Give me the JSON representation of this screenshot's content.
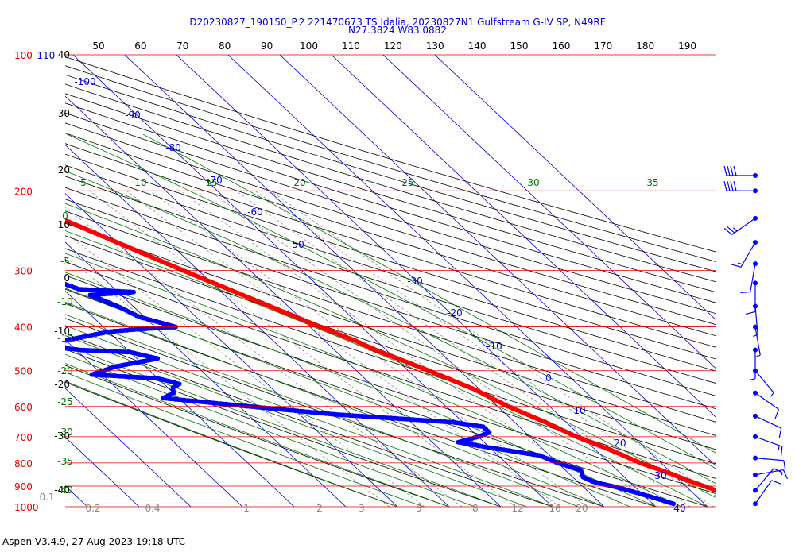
{
  "title_line1": "D20230827_190150_P.2 221470673 TS Idalia, 20230827N1 Gulfstream G-IV SP, N49RF",
  "title_line2": "N27.3824 W83.0882",
  "footer": "Aspen V3.4.9, 27 Aug 2023  19:18 UTC",
  "colors": {
    "pressure_line": "#dd0000",
    "isotherm": "#0000cc",
    "dry_adiabat": "#000000",
    "moist_adiabat": "#007700",
    "mixing_ratio": "#888888",
    "temperature": "#ff0000",
    "dewpoint": "#0000ff",
    "wind_barb": "#0000ff"
  },
  "chart_data": {
    "type": "skew-t",
    "pressure_labels": [
      "100",
      "200",
      "300",
      "400",
      "500",
      "600",
      "700",
      "800",
      "900",
      "1000"
    ],
    "height_label_100": "-110",
    "height_scale_labels": [
      "40",
      "30",
      "20",
      "10",
      "0",
      "-10",
      "-20",
      "-30",
      "-40"
    ],
    "top_scale_labels": [
      "50",
      "60",
      "70",
      "80",
      "90",
      "100",
      "110",
      "120",
      "130",
      "140",
      "150",
      "160",
      "170",
      "180",
      "190"
    ],
    "isotherm_labels": [
      "-100",
      "-90",
      "-80",
      "-70",
      "-60",
      "-50",
      "-30",
      "-20",
      "-10",
      "0",
      "10",
      "20",
      "30",
      "40"
    ],
    "moist_adiabat_labels_top": [
      "5",
      "10",
      "15",
      "20",
      "25",
      "30",
      "35"
    ],
    "moist_adiabat_labels_left": [
      "0",
      "-5",
      "-10",
      "-15",
      "-20",
      "-25",
      "-30",
      "-35",
      "-40"
    ],
    "mixing_ratio_labels": [
      "0.1",
      "0.2",
      "0.4",
      "1",
      "2",
      "3",
      "5",
      "8",
      "12",
      "16",
      "20"
    ],
    "temperature": [
      {
        "p": 185,
        "t": -55
      },
      {
        "p": 200,
        "t": -53
      },
      {
        "p": 230,
        "t": -46
      },
      {
        "p": 260,
        "t": -40
      },
      {
        "p": 300,
        "t": -33
      },
      {
        "p": 350,
        "t": -25
      },
      {
        "p": 400,
        "t": -18
      },
      {
        "p": 430,
        "t": -14
      },
      {
        "p": 450,
        "t": -12
      },
      {
        "p": 500,
        "t": -6
      },
      {
        "p": 550,
        "t": -1
      },
      {
        "p": 600,
        "t": 2
      },
      {
        "p": 650,
        "t": 6
      },
      {
        "p": 700,
        "t": 9
      },
      {
        "p": 750,
        "t": 13
      },
      {
        "p": 800,
        "t": 16
      },
      {
        "p": 850,
        "t": 20
      },
      {
        "p": 880,
        "t": 22
      },
      {
        "p": 920,
        "t": 25
      },
      {
        "p": 950,
        "t": 26
      },
      {
        "p": 985,
        "t": 28
      }
    ],
    "dewpoint": [
      {
        "p": 250,
        "t": -56
      },
      {
        "p": 265,
        "t": -54
      },
      {
        "p": 285,
        "t": -58
      },
      {
        "p": 310,
        "t": -61
      },
      {
        "p": 330,
        "t": -57
      },
      {
        "p": 335,
        "t": -47
      },
      {
        "p": 340,
        "t": -56
      },
      {
        "p": 360,
        "t": -53
      },
      {
        "p": 380,
        "t": -51
      },
      {
        "p": 400,
        "t": -46
      },
      {
        "p": 405,
        "t": -54
      },
      {
        "p": 410,
        "t": -60
      },
      {
        "p": 440,
        "t": -76
      },
      {
        "p": 450,
        "t": -69
      },
      {
        "p": 455,
        "t": -60
      },
      {
        "p": 470,
        "t": -56
      },
      {
        "p": 490,
        "t": -66
      },
      {
        "p": 510,
        "t": -72
      },
      {
        "p": 520,
        "t": -60
      },
      {
        "p": 535,
        "t": -57
      },
      {
        "p": 545,
        "t": -59
      },
      {
        "p": 560,
        "t": -60
      },
      {
        "p": 575,
        "t": -63
      },
      {
        "p": 600,
        "t": -48
      },
      {
        "p": 625,
        "t": -33
      },
      {
        "p": 650,
        "t": -12
      },
      {
        "p": 665,
        "t": -7
      },
      {
        "p": 685,
        "t": -7
      },
      {
        "p": 700,
        "t": -10
      },
      {
        "p": 720,
        "t": -15
      },
      {
        "p": 740,
        "t": -10
      },
      {
        "p": 770,
        "t": -2
      },
      {
        "p": 800,
        "t": 0
      },
      {
        "p": 830,
        "t": 3
      },
      {
        "p": 860,
        "t": 2
      },
      {
        "p": 880,
        "t": 3
      },
      {
        "p": 910,
        "t": 7
      },
      {
        "p": 950,
        "t": 11
      },
      {
        "p": 985,
        "t": 14
      }
    ],
    "wind_barbs": [
      {
        "p": 185,
        "dir": 270,
        "spd": 40
      },
      {
        "p": 200,
        "dir": 270,
        "spd": 40
      },
      {
        "p": 230,
        "dir": 235,
        "spd": 25
      },
      {
        "p": 260,
        "dir": 210,
        "spd": 15
      },
      {
        "p": 290,
        "dir": 190,
        "spd": 10
      },
      {
        "p": 320,
        "dir": 180,
        "spd": 10
      },
      {
        "p": 360,
        "dir": 175,
        "spd": 5
      },
      {
        "p": 400,
        "dir": 170,
        "spd": 5
      },
      {
        "p": 450,
        "dir": 180,
        "spd": 5
      },
      {
        "p": 500,
        "dir": 140,
        "spd": 5
      },
      {
        "p": 560,
        "dir": 125,
        "spd": 10
      },
      {
        "p": 630,
        "dir": 115,
        "spd": 10
      },
      {
        "p": 700,
        "dir": 110,
        "spd": 15
      },
      {
        "p": 780,
        "dir": 95,
        "spd": 10
      },
      {
        "p": 850,
        "dir": 80,
        "spd": 15
      },
      {
        "p": 920,
        "dir": 40,
        "spd": 10
      },
      {
        "p": 985,
        "dir": 35,
        "spd": 10
      }
    ]
  }
}
